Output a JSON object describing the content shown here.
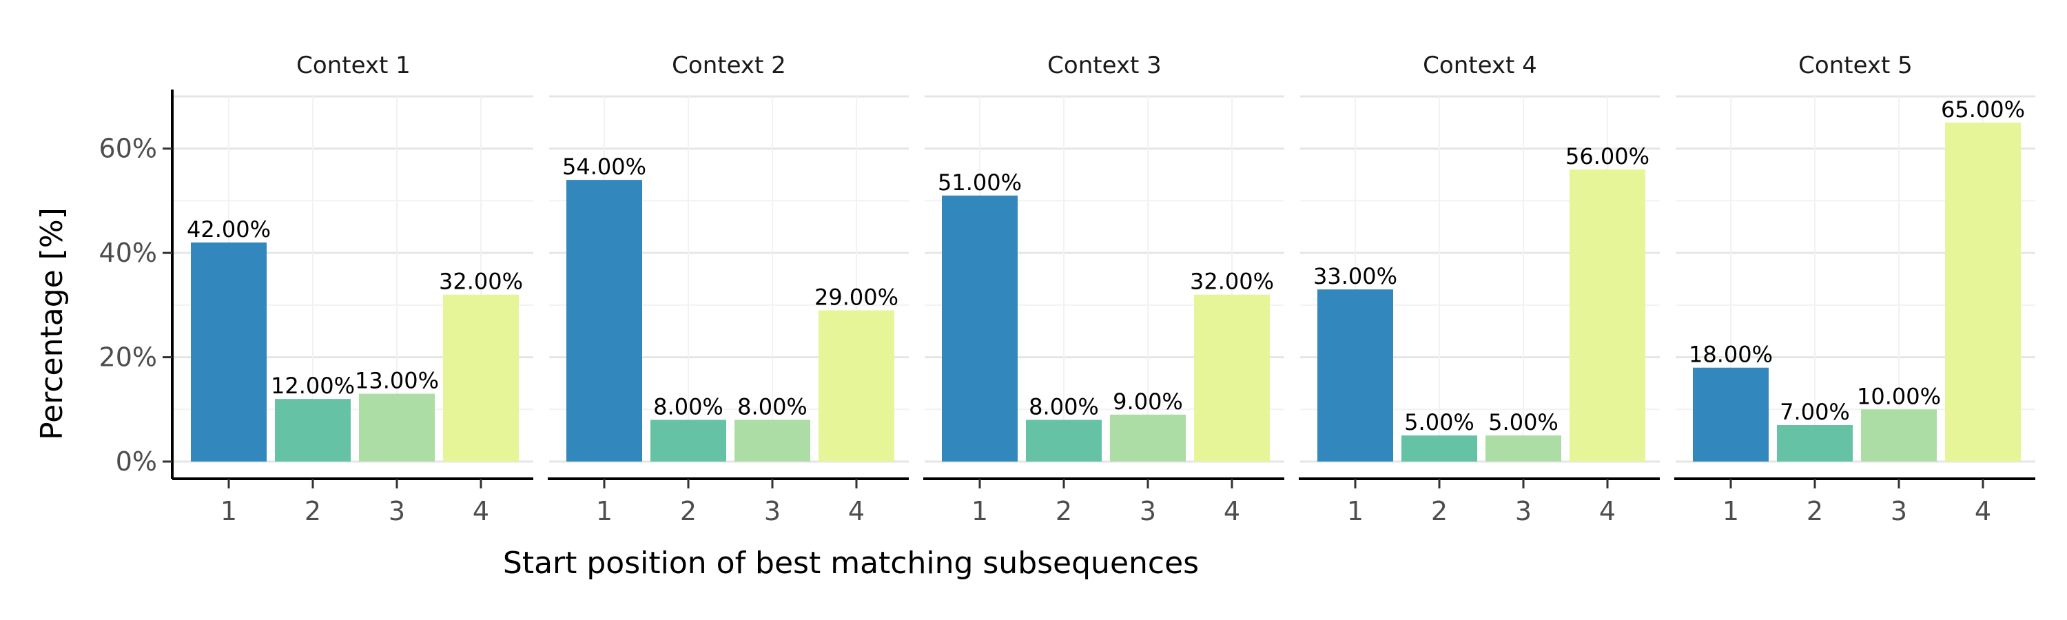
{
  "chart_data": {
    "type": "bar",
    "xlabel": "Start position of best matching subsequences",
    "ylabel": "Percentage [%]",
    "ylim": [
      0,
      70
    ],
    "yticks": [
      0,
      20,
      40,
      60
    ],
    "ytick_labels": [
      "0%",
      "20%",
      "40%",
      "60%"
    ],
    "categories": [
      "1",
      "2",
      "3",
      "4"
    ],
    "category_colors": [
      "#3288bd",
      "#66c2a5",
      "#abdda4",
      "#e6f598"
    ],
    "grid": true,
    "panels": [
      {
        "title": "Context 1",
        "values": [
          42,
          12,
          13,
          32
        ],
        "labels": [
          "42.00%",
          "12.00%",
          "13.00%",
          "32.00%"
        ]
      },
      {
        "title": "Context 2",
        "values": [
          54,
          8,
          8,
          29
        ],
        "labels": [
          "54.00%",
          "8.00%",
          "8.00%",
          "29.00%"
        ]
      },
      {
        "title": "Context 3",
        "values": [
          51,
          8,
          9,
          32
        ],
        "labels": [
          "51.00%",
          "8.00%",
          "9.00%",
          "32.00%"
        ]
      },
      {
        "title": "Context 4",
        "values": [
          33,
          5,
          5,
          56
        ],
        "labels": [
          "33.00%",
          "5.00%",
          "5.00%",
          "56.00%"
        ]
      },
      {
        "title": "Context 5",
        "values": [
          18,
          7,
          10,
          65
        ],
        "labels": [
          "18.00%",
          "7.00%",
          "10.00%",
          "65.00%"
        ]
      }
    ]
  }
}
